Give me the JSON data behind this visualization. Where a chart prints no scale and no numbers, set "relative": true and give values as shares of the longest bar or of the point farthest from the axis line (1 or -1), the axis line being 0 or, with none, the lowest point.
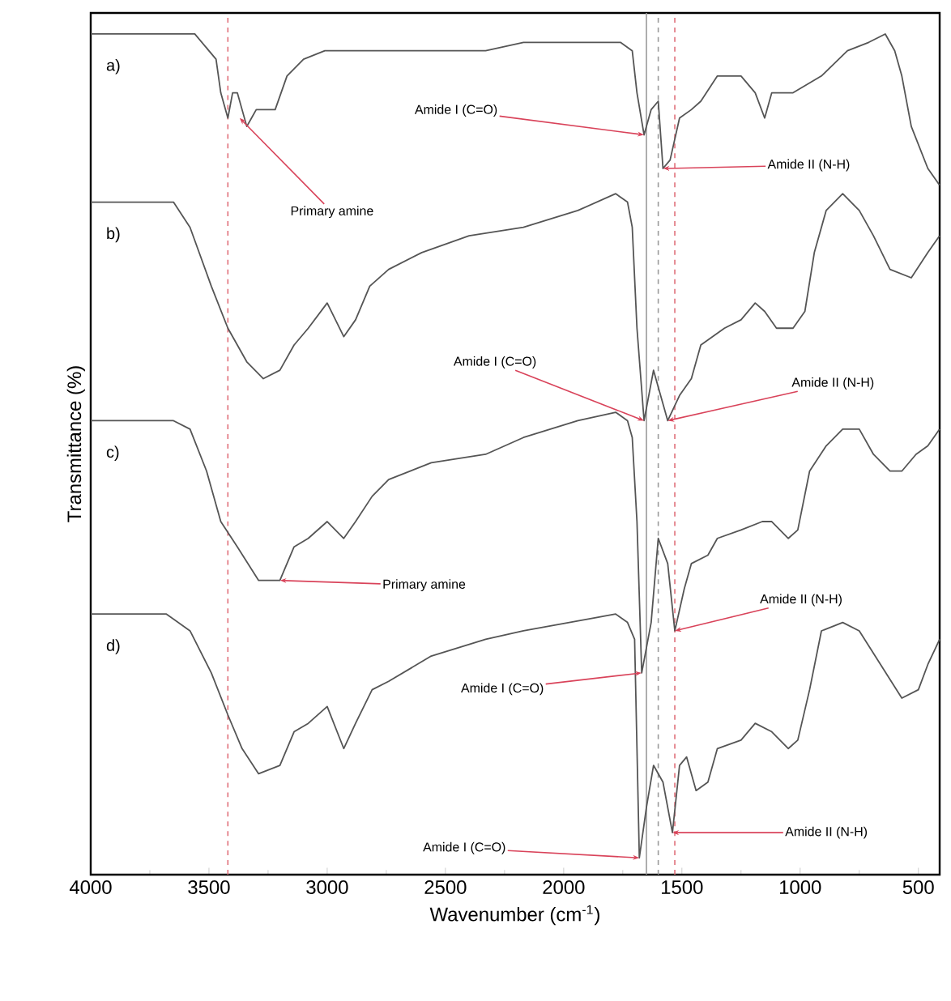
{
  "chart_data": {
    "type": "line",
    "relative": true,
    "xlabel": "Wavenumber (cm$^{-1}$)",
    "ylabel": "Transmittance (%)",
    "xlim": [
      4000,
      410
    ],
    "xticks": [
      4000,
      3500,
      3000,
      2500,
      2000,
      1500,
      1000,
      500
    ],
    "series": [
      {
        "name": "a)",
        "color": "#555555",
        "x": [
          4000,
          3560,
          3470,
          3450,
          3420,
          3400,
          3380,
          3340,
          3320,
          3300,
          3220,
          3170,
          3100,
          3010,
          2600,
          2330,
          2170,
          1760,
          1710,
          1690,
          1660,
          1630,
          1600,
          1580,
          1550,
          1510,
          1460,
          1420,
          1350,
          1250,
          1190,
          1150,
          1120,
          1030,
          910,
          800,
          710,
          640,
          600,
          570,
          530,
          460,
          410
        ],
        "values": [
          1.0,
          1.0,
          0.97,
          0.93,
          0.9,
          0.93,
          0.93,
          0.89,
          0.9,
          0.91,
          0.91,
          0.95,
          0.97,
          0.98,
          0.98,
          0.98,
          0.99,
          0.99,
          0.98,
          0.93,
          0.88,
          0.91,
          0.92,
          0.84,
          0.85,
          0.9,
          0.91,
          0.92,
          0.95,
          0.95,
          0.93,
          0.9,
          0.93,
          0.93,
          0.95,
          0.98,
          0.99,
          1.0,
          0.98,
          0.95,
          0.89,
          0.84,
          0.82
        ]
      },
      {
        "name": "b)",
        "color": "#555555",
        "x": [
          4000,
          3650,
          3580,
          3490,
          3420,
          3340,
          3270,
          3200,
          3140,
          3080,
          3000,
          2930,
          2880,
          2820,
          2740,
          2600,
          2400,
          2170,
          1940,
          1780,
          1730,
          1710,
          1690,
          1660,
          1620,
          1590,
          1560,
          1510,
          1460,
          1420,
          1320,
          1250,
          1190,
          1150,
          1100,
          1030,
          980,
          940,
          890,
          820,
          750,
          690,
          620,
          530,
          460,
          410
        ],
        "values": [
          0.8,
          0.8,
          0.77,
          0.7,
          0.65,
          0.61,
          0.59,
          0.6,
          0.63,
          0.65,
          0.68,
          0.64,
          0.66,
          0.7,
          0.72,
          0.74,
          0.76,
          0.77,
          0.79,
          0.81,
          0.8,
          0.77,
          0.65,
          0.54,
          0.6,
          0.57,
          0.54,
          0.57,
          0.59,
          0.63,
          0.65,
          0.66,
          0.68,
          0.67,
          0.65,
          0.65,
          0.67,
          0.74,
          0.79,
          0.81,
          0.79,
          0.76,
          0.72,
          0.71,
          0.74,
          0.76
        ]
      },
      {
        "name": "c)",
        "color": "#555555",
        "x": [
          4000,
          3650,
          3580,
          3510,
          3450,
          3380,
          3290,
          3200,
          3140,
          3080,
          3000,
          2930,
          2880,
          2810,
          2740,
          2560,
          2330,
          2170,
          1940,
          1780,
          1730,
          1710,
          1690,
          1670,
          1630,
          1600,
          1560,
          1530,
          1490,
          1460,
          1390,
          1350,
          1250,
          1160,
          1120,
          1050,
          1010,
          960,
          890,
          820,
          750,
          690,
          620,
          570,
          510,
          460,
          410
        ],
        "values": [
          0.54,
          0.54,
          0.53,
          0.48,
          0.42,
          0.39,
          0.35,
          0.35,
          0.39,
          0.4,
          0.42,
          0.4,
          0.42,
          0.45,
          0.47,
          0.49,
          0.5,
          0.52,
          0.54,
          0.55,
          0.54,
          0.52,
          0.42,
          0.24,
          0.3,
          0.4,
          0.37,
          0.29,
          0.34,
          0.37,
          0.38,
          0.4,
          0.41,
          0.42,
          0.42,
          0.4,
          0.41,
          0.48,
          0.51,
          0.53,
          0.53,
          0.5,
          0.48,
          0.48,
          0.5,
          0.51,
          0.53
        ]
      },
      {
        "name": "d)",
        "color": "#555555",
        "x": [
          4000,
          3680,
          3580,
          3490,
          3420,
          3360,
          3290,
          3200,
          3140,
          3080,
          3000,
          2930,
          2880,
          2810,
          2740,
          2560,
          2330,
          2170,
          1780,
          1730,
          1700,
          1680,
          1650,
          1620,
          1580,
          1540,
          1510,
          1480,
          1440,
          1390,
          1350,
          1250,
          1190,
          1120,
          1050,
          1010,
          960,
          910,
          820,
          750,
          660,
          570,
          500,
          460,
          410
        ],
        "values": [
          0.31,
          0.31,
          0.29,
          0.24,
          0.19,
          0.15,
          0.12,
          0.13,
          0.17,
          0.18,
          0.2,
          0.15,
          0.18,
          0.22,
          0.23,
          0.26,
          0.28,
          0.29,
          0.31,
          0.3,
          0.28,
          0.02,
          0.08,
          0.13,
          0.11,
          0.05,
          0.13,
          0.14,
          0.1,
          0.11,
          0.15,
          0.16,
          0.18,
          0.17,
          0.15,
          0.16,
          0.22,
          0.29,
          0.3,
          0.29,
          0.25,
          0.21,
          0.22,
          0.25,
          0.28
        ]
      }
    ],
    "ref_lines": [
      {
        "axis": "x",
        "value": 3420,
        "color": "#e0707a",
        "line_style": "dashed"
      },
      {
        "axis": "x",
        "value": 1650,
        "color": "#9a9a9a",
        "line_style": "solid"
      },
      {
        "axis": "x",
        "value": 1600,
        "color": "#9a9a9a",
        "line_style": "dashed"
      },
      {
        "axis": "x",
        "value": 1530,
        "color": "#e0707a",
        "line_style": "dashed"
      }
    ],
    "annotations": [
      {
        "text": "Primary amine",
        "x": 3370,
        "y": 0.9
      },
      {
        "text": "Amide I (C=O)",
        "x": 1660,
        "y": 0.88
      },
      {
        "text": "Amide II (N-H)",
        "x": 1580,
        "y": 0.84
      },
      {
        "text": "Amide I (C=O)",
        "x": 1660,
        "y": 0.54
      },
      {
        "text": "Amide II (N-H)",
        "x": 1560,
        "y": 0.54
      },
      {
        "text": "Primary amine",
        "x": 3200,
        "y": 0.35
      },
      {
        "text": "Amide II (N-H)",
        "x": 1530,
        "y": 0.29
      },
      {
        "text": "Amide I (C=O)",
        "x": 1670,
        "y": 0.24
      },
      {
        "text": "Amide I (C=O)",
        "x": 1680,
        "y": 0.02
      },
      {
        "text": "Amide II (N-H)",
        "x": 1540,
        "y": 0.05
      }
    ],
    "grid": false,
    "legend": false
  }
}
